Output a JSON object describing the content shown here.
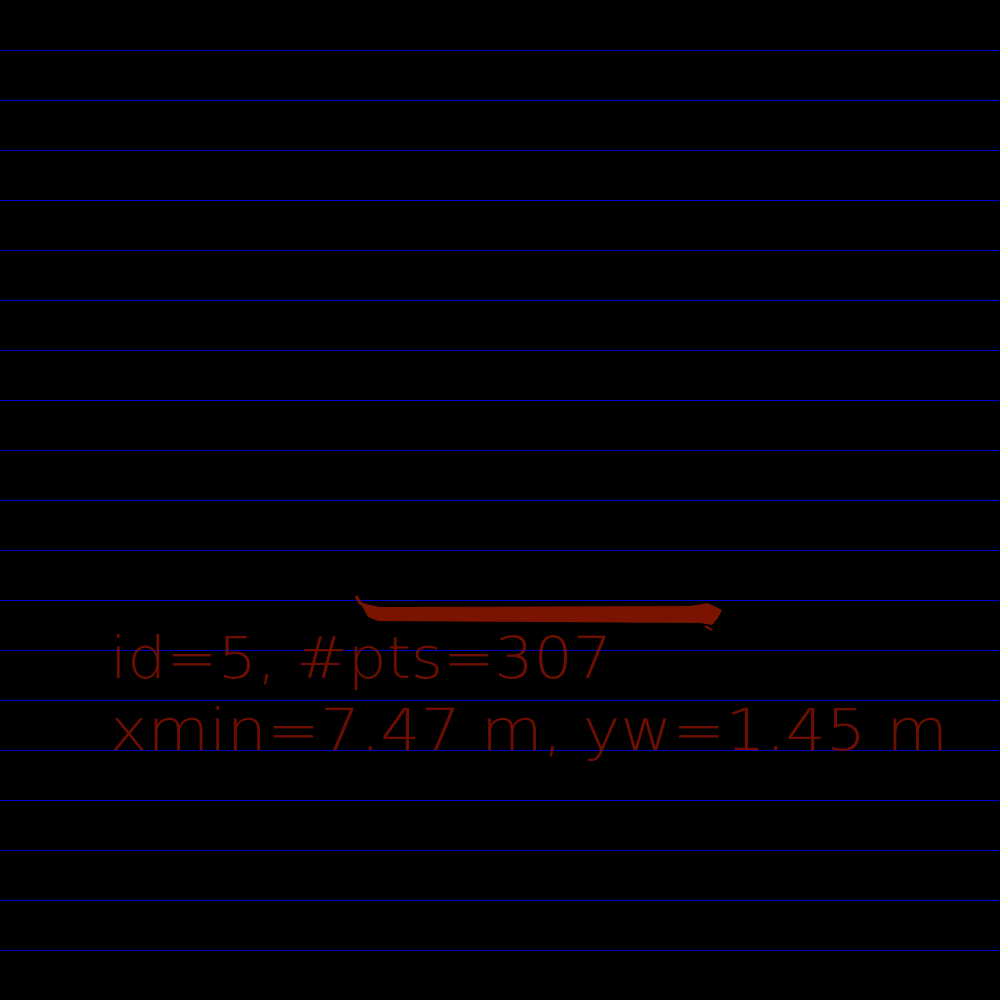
{
  "labels": [
    "id=5, #pts=307",
    "xmin=7.47 m, yw=1.45 m"
  ]
}
